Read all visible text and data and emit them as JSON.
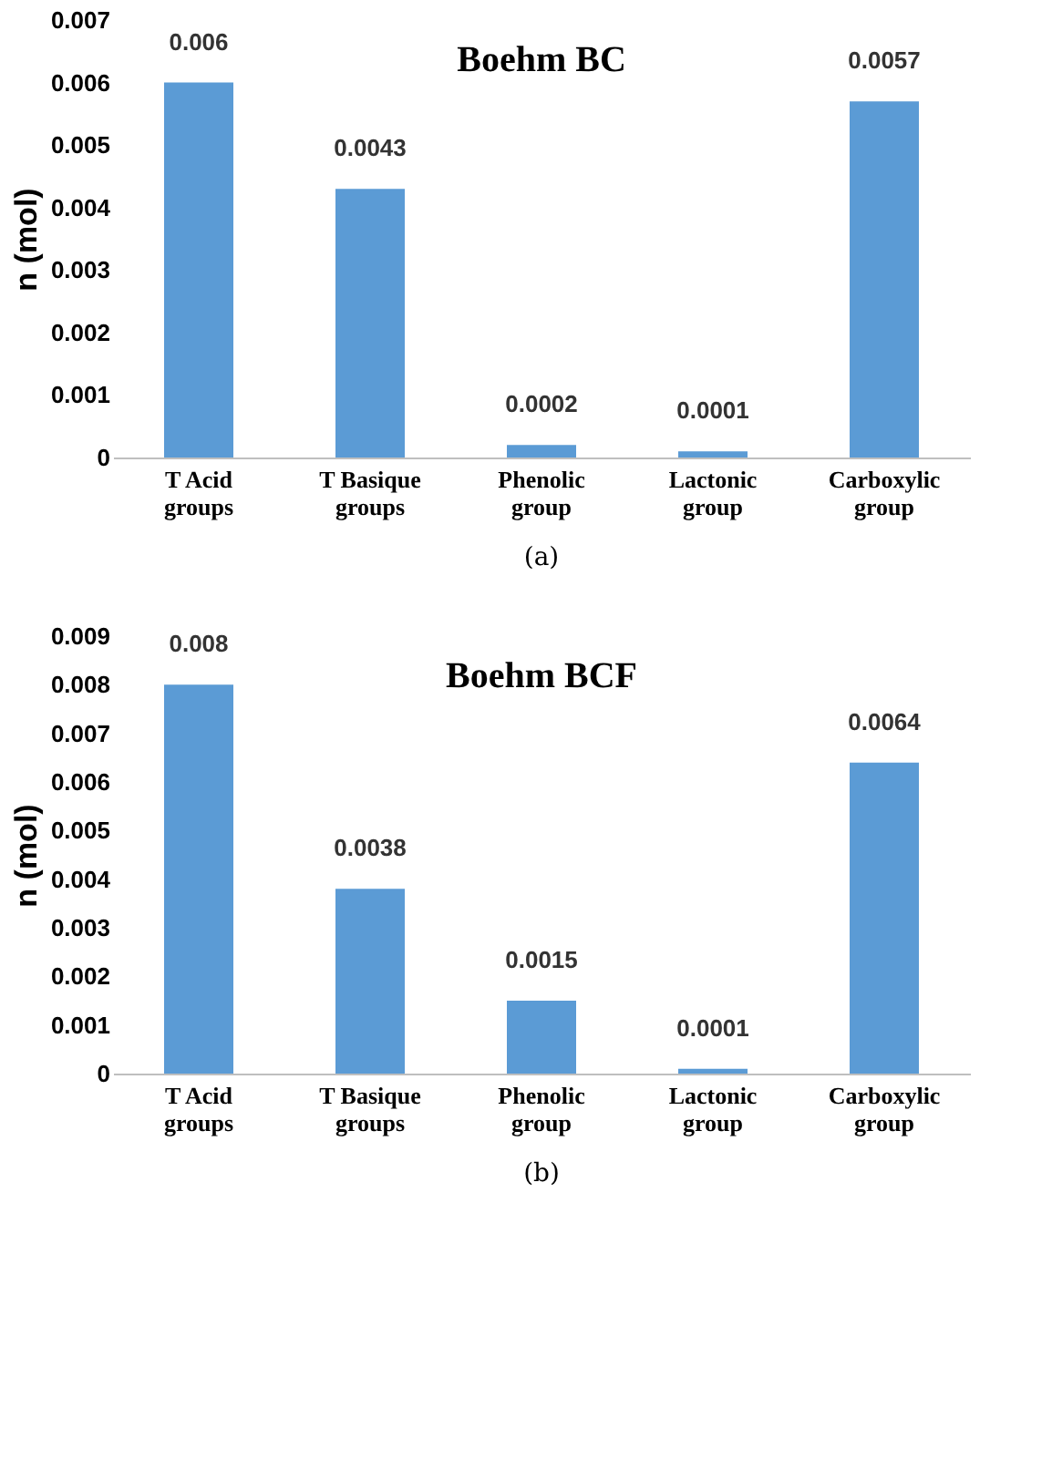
{
  "chart_data": [
    {
      "type": "bar",
      "title": "Boehm BC",
      "ylabel": "n (mol)",
      "annotations": [
        "(a)"
      ],
      "categories": [
        "T Acid\ngroups",
        "T Basique\ngroups",
        "Phenolic\ngroup",
        "Lactonic\ngroup",
        "Carboxylic\ngroup"
      ],
      "values": [
        0.006,
        0.0043,
        0.0002,
        0.0001,
        0.0057
      ],
      "color": "#5b9bd5",
      "ylim": [
        0,
        0.007
      ],
      "yticks": [
        0,
        0.001,
        0.002,
        0.003,
        0.004,
        0.005,
        0.006,
        0.007
      ],
      "grid": false,
      "data_labels": true
    },
    {
      "type": "bar",
      "title": "Boehm BCF",
      "ylabel": "n (mol)",
      "annotations": [
        "(b)"
      ],
      "categories": [
        "T Acid\ngroups",
        "T Basique\ngroups",
        "Phenolic\ngroup",
        "Lactonic\ngroup",
        "Carboxylic\ngroup"
      ],
      "values": [
        0.008,
        0.0038,
        0.0015,
        0.0001,
        0.0064
      ],
      "color": "#5b9bd5",
      "ylim": [
        0,
        0.009
      ],
      "yticks": [
        0,
        0.001,
        0.002,
        0.003,
        0.004,
        0.005,
        0.006,
        0.007,
        0.008,
        0.009
      ],
      "grid": false,
      "data_labels": true
    }
  ]
}
